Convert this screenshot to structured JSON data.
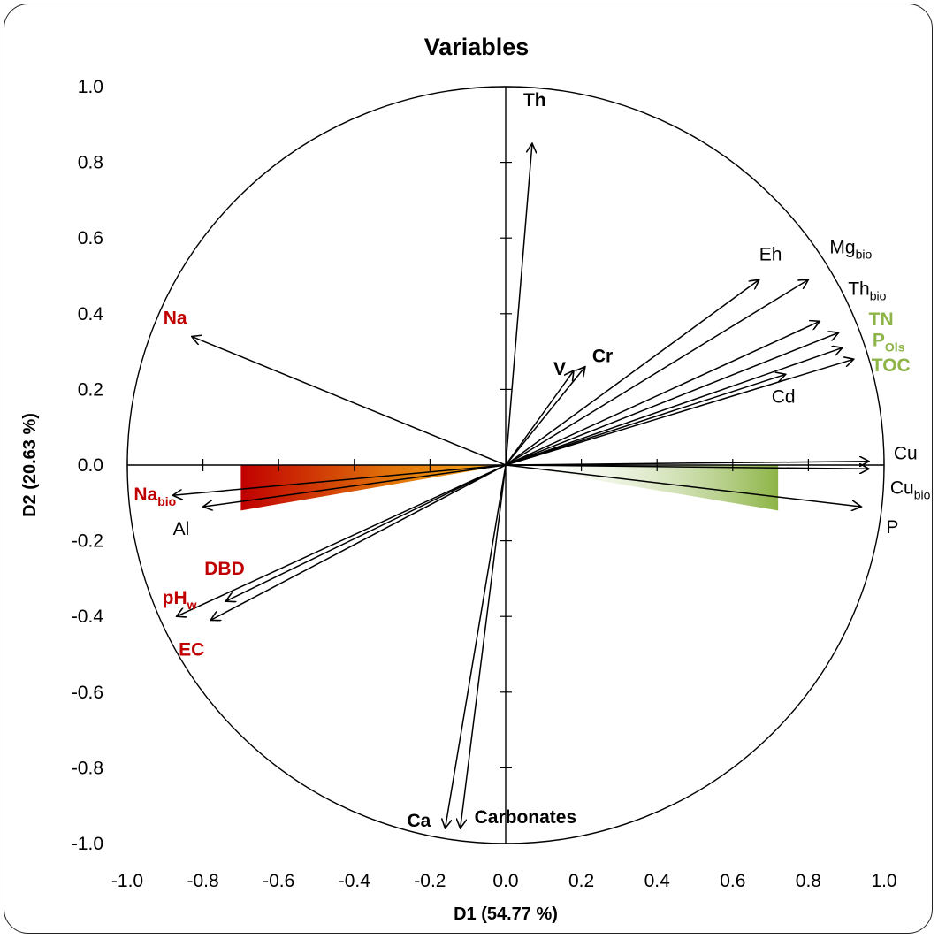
{
  "chart_data": {
    "type": "scatter",
    "subtype": "pca-correlation-circle",
    "title": "Variables",
    "xlabel": "D1 (54.77 %)",
    "ylabel": "D2 (20.63 %)",
    "xlim": [
      -1.0,
      1.0
    ],
    "ylim": [
      -1.0,
      1.0
    ],
    "x_ticks": [
      "-1.0",
      "-0.8",
      "-0.6",
      "-0.4",
      "-0.2",
      "0.0",
      "0.2",
      "0.4",
      "0.6",
      "0.8",
      "1.0"
    ],
    "y_ticks": [
      "1.0",
      "0.8",
      "0.6",
      "0.4",
      "0.2",
      "0.0",
      "-0.2",
      "-0.4",
      "-0.6",
      "-0.8",
      "-1.0"
    ],
    "grid": false,
    "legend": "none",
    "colors": {
      "red": "#C00000",
      "green": "#8DB446",
      "black": "#000000"
    },
    "variables": [
      {
        "name": "Th",
        "sub": "",
        "x": 0.07,
        "y": 0.85,
        "color": "black",
        "bold": true
      },
      {
        "name": "Eh",
        "sub": "",
        "x": 0.67,
        "y": 0.49,
        "color": "black",
        "bold": false
      },
      {
        "name": "Mg",
        "sub": "bio",
        "x": 0.8,
        "y": 0.49,
        "color": "black",
        "bold": false
      },
      {
        "name": "Th",
        "sub": "bio",
        "x": 0.83,
        "y": 0.38,
        "color": "black",
        "bold": false
      },
      {
        "name": "TN",
        "sub": "",
        "x": 0.88,
        "y": 0.35,
        "color": "green",
        "bold": true
      },
      {
        "name": "P",
        "sub": "Ols",
        "x": 0.89,
        "y": 0.31,
        "color": "green",
        "bold": true
      },
      {
        "name": "TOC",
        "sub": "",
        "x": 0.92,
        "y": 0.28,
        "color": "green",
        "bold": true
      },
      {
        "name": "Cd",
        "sub": "",
        "x": 0.74,
        "y": 0.24,
        "color": "black",
        "bold": false
      },
      {
        "name": "V",
        "sub": "",
        "x": 0.18,
        "y": 0.25,
        "color": "black",
        "bold": true
      },
      {
        "name": "Cr",
        "sub": "",
        "x": 0.21,
        "y": 0.26,
        "color": "black",
        "bold": true
      },
      {
        "name": "Cu",
        "sub": "",
        "x": 0.96,
        "y": 0.01,
        "color": "black",
        "bold": false
      },
      {
        "name": "Cu",
        "sub": "bio",
        "x": 0.96,
        "y": -0.01,
        "color": "black",
        "bold": false
      },
      {
        "name": "P",
        "sub": "",
        "x": 0.94,
        "y": -0.11,
        "color": "black",
        "bold": false
      },
      {
        "name": "Na",
        "sub": "",
        "x": -0.83,
        "y": 0.34,
        "color": "red",
        "bold": true
      },
      {
        "name": "Na",
        "sub": "bio",
        "x": -0.88,
        "y": -0.08,
        "color": "red",
        "bold": true
      },
      {
        "name": "Al",
        "sub": "",
        "x": -0.8,
        "y": -0.11,
        "color": "black",
        "bold": false
      },
      {
        "name": "DBD",
        "sub": "",
        "x": -0.74,
        "y": -0.36,
        "color": "red",
        "bold": true
      },
      {
        "name": "pH",
        "sub": "w",
        "x": -0.87,
        "y": -0.4,
        "color": "red",
        "bold": true
      },
      {
        "name": "EC",
        "sub": "",
        "x": -0.78,
        "y": -0.41,
        "color": "red",
        "bold": true
      },
      {
        "name": "Ca",
        "sub": "",
        "x": -0.16,
        "y": -0.96,
        "color": "black",
        "bold": true
      },
      {
        "name": "Carbonates",
        "sub": "",
        "x": -0.12,
        "y": -0.96,
        "color": "black",
        "bold": true
      }
    ]
  }
}
